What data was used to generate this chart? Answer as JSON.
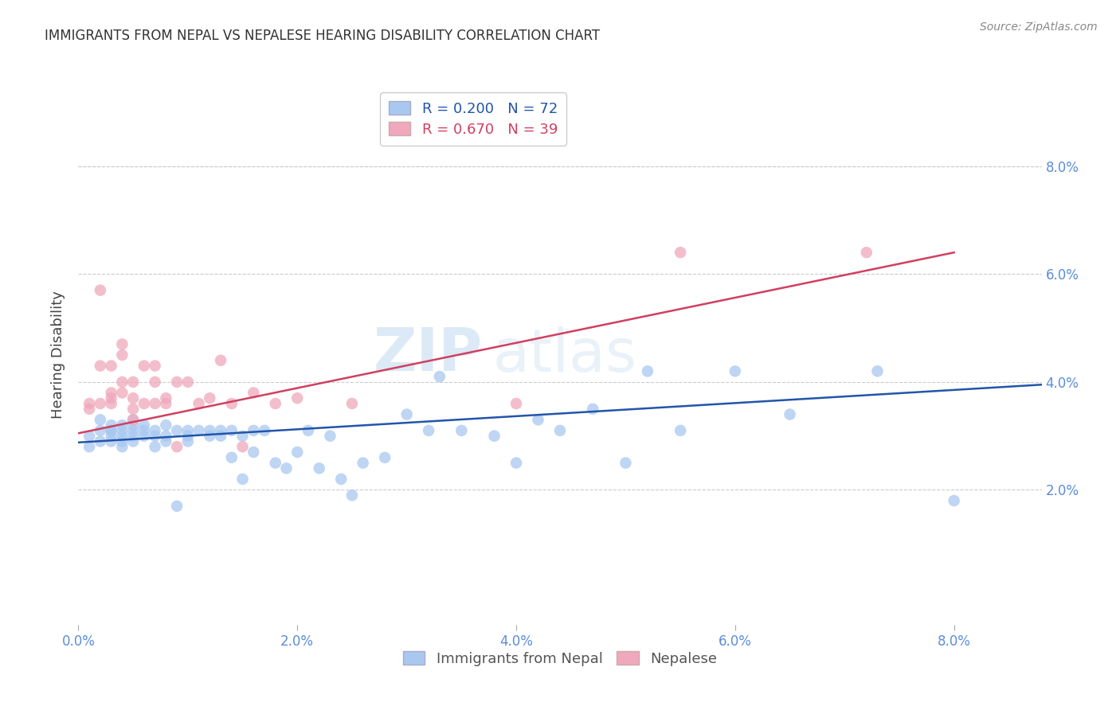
{
  "title": "IMMIGRANTS FROM NEPAL VS NEPALESE HEARING DISABILITY CORRELATION CHART",
  "source": "Source: ZipAtlas.com",
  "ylabel": "Hearing Disability",
  "legend_blue_r": "R = 0.200",
  "legend_blue_n": "N = 72",
  "legend_pink_r": "R = 0.670",
  "legend_pink_n": "N = 39",
  "legend_label_blue": "Immigrants from Nepal",
  "legend_label_pink": "Nepalese",
  "xlim": [
    0.0,
    0.088
  ],
  "ylim": [
    -0.005,
    0.095
  ],
  "yticks": [
    0.02,
    0.04,
    0.06,
    0.08
  ],
  "xticks": [
    0.0,
    0.02,
    0.04,
    0.06,
    0.08
  ],
  "color_blue": "#A8C8F0",
  "color_pink": "#F0A8BC",
  "line_color_blue": "#2255AA",
  "line_color_pink": "#D04060",
  "watermark_zip": "ZIP",
  "watermark_atlas": "atlas",
  "blue_x": [
    0.001,
    0.001,
    0.002,
    0.002,
    0.002,
    0.003,
    0.003,
    0.003,
    0.003,
    0.003,
    0.004,
    0.004,
    0.004,
    0.004,
    0.004,
    0.005,
    0.005,
    0.005,
    0.005,
    0.005,
    0.006,
    0.006,
    0.006,
    0.007,
    0.007,
    0.007,
    0.008,
    0.008,
    0.008,
    0.009,
    0.009,
    0.01,
    0.01,
    0.01,
    0.011,
    0.012,
    0.012,
    0.013,
    0.013,
    0.014,
    0.014,
    0.015,
    0.015,
    0.016,
    0.016,
    0.017,
    0.018,
    0.019,
    0.02,
    0.021,
    0.022,
    0.023,
    0.024,
    0.025,
    0.026,
    0.028,
    0.03,
    0.032,
    0.033,
    0.035,
    0.038,
    0.04,
    0.042,
    0.044,
    0.047,
    0.05,
    0.052,
    0.055,
    0.06,
    0.065,
    0.073,
    0.08
  ],
  "blue_y": [
    0.03,
    0.028,
    0.031,
    0.029,
    0.033,
    0.031,
    0.03,
    0.032,
    0.029,
    0.031,
    0.031,
    0.03,
    0.029,
    0.032,
    0.028,
    0.031,
    0.033,
    0.03,
    0.029,
    0.032,
    0.031,
    0.03,
    0.032,
    0.028,
    0.031,
    0.03,
    0.03,
    0.029,
    0.032,
    0.031,
    0.017,
    0.03,
    0.031,
    0.029,
    0.031,
    0.031,
    0.03,
    0.031,
    0.03,
    0.026,
    0.031,
    0.022,
    0.03,
    0.031,
    0.027,
    0.031,
    0.025,
    0.024,
    0.027,
    0.031,
    0.024,
    0.03,
    0.022,
    0.019,
    0.025,
    0.026,
    0.034,
    0.031,
    0.041,
    0.031,
    0.03,
    0.025,
    0.033,
    0.031,
    0.035,
    0.025,
    0.042,
    0.031,
    0.042,
    0.034,
    0.042,
    0.018
  ],
  "pink_x": [
    0.001,
    0.001,
    0.002,
    0.002,
    0.002,
    0.003,
    0.003,
    0.003,
    0.003,
    0.004,
    0.004,
    0.004,
    0.004,
    0.005,
    0.005,
    0.005,
    0.005,
    0.006,
    0.006,
    0.007,
    0.007,
    0.007,
    0.008,
    0.008,
    0.009,
    0.009,
    0.01,
    0.011,
    0.012,
    0.013,
    0.014,
    0.015,
    0.016,
    0.018,
    0.02,
    0.025,
    0.04,
    0.055,
    0.072
  ],
  "pink_y": [
    0.035,
    0.036,
    0.057,
    0.043,
    0.036,
    0.036,
    0.043,
    0.038,
    0.037,
    0.047,
    0.045,
    0.04,
    0.038,
    0.04,
    0.035,
    0.033,
    0.037,
    0.043,
    0.036,
    0.043,
    0.04,
    0.036,
    0.037,
    0.036,
    0.04,
    0.028,
    0.04,
    0.036,
    0.037,
    0.044,
    0.036,
    0.028,
    0.038,
    0.036,
    0.037,
    0.036,
    0.036,
    0.064,
    0.064
  ],
  "blue_line_x": [
    0.0,
    0.088
  ],
  "blue_line_y": [
    0.0288,
    0.0395
  ],
  "pink_line_x": [
    0.0,
    0.08
  ],
  "pink_line_y": [
    0.0305,
    0.064
  ]
}
